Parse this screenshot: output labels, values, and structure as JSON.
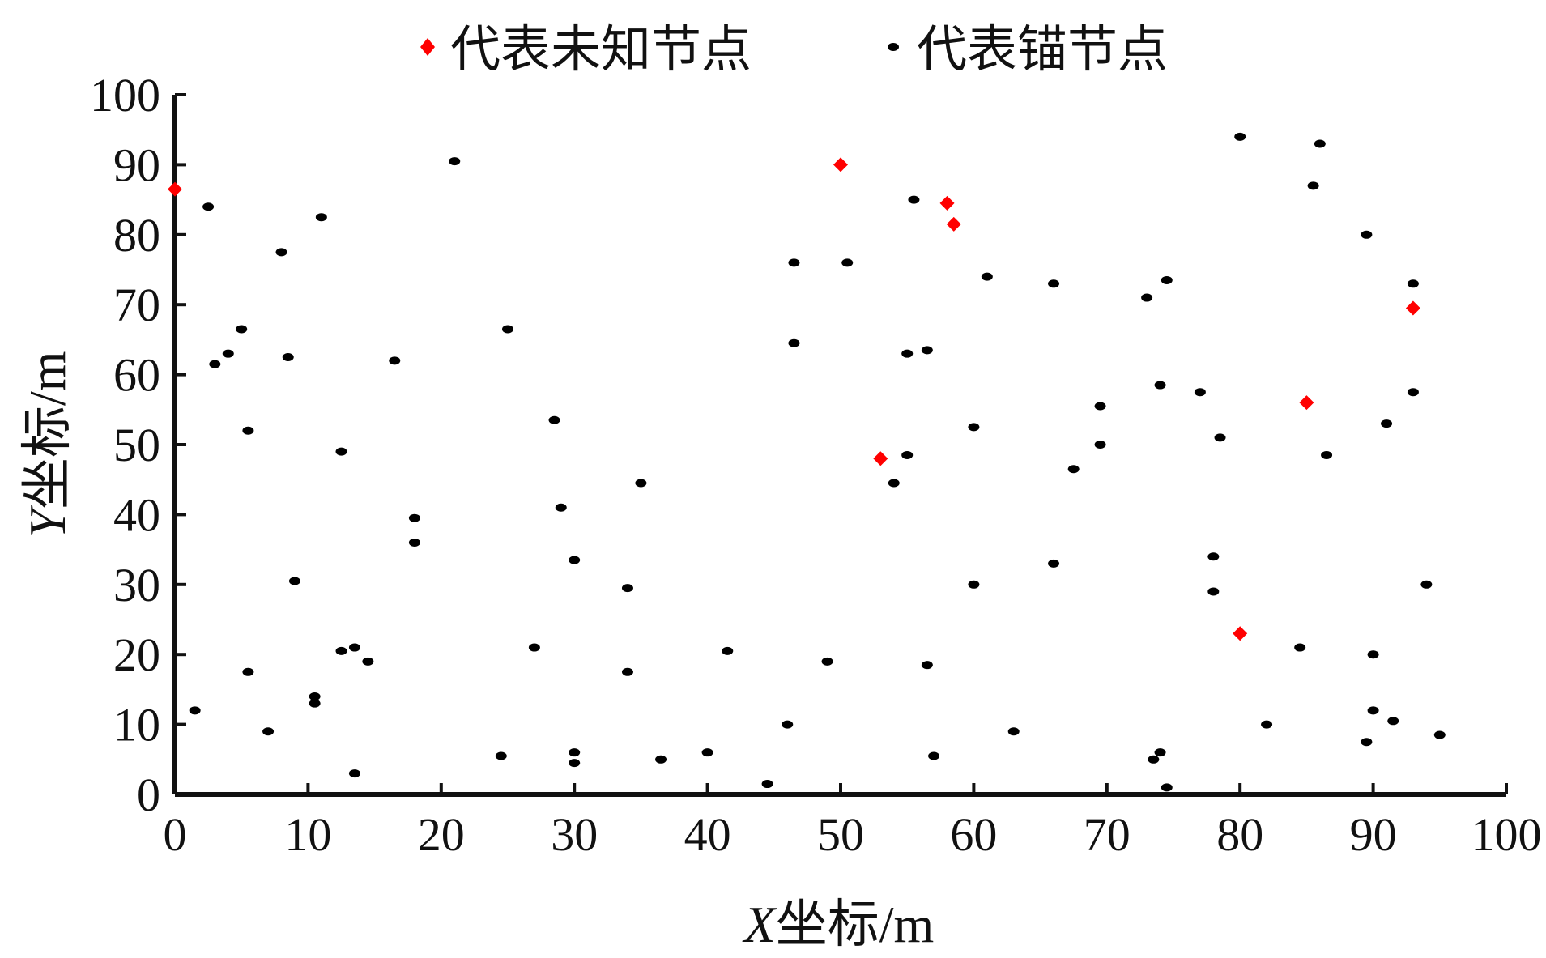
{
  "chart_data": {
    "type": "scatter",
    "xlabel_var": "X",
    "xlabel_suffix": "坐标/m",
    "ylabel_var": "Y",
    "ylabel_suffix": "坐标/m",
    "xlim": [
      0,
      100
    ],
    "ylim": [
      0,
      100
    ],
    "xticks": [
      "0",
      "10",
      "20",
      "30",
      "40",
      "50",
      "60",
      "70",
      "80",
      "90",
      "100"
    ],
    "yticks": [
      "0",
      "10",
      "20",
      "30",
      "40",
      "50",
      "60",
      "70",
      "80",
      "90",
      "100"
    ],
    "grid": false,
    "legend_position": "top",
    "series": [
      {
        "name": "代表未知节点",
        "color": "#ff0000",
        "marker": "diamond",
        "points": [
          [
            0,
            86.5
          ],
          [
            50,
            90
          ],
          [
            58,
            84.5
          ],
          [
            58.5,
            81.5
          ],
          [
            53,
            48
          ],
          [
            93,
            69.5
          ],
          [
            85,
            56
          ],
          [
            80,
            23
          ]
        ]
      },
      {
        "name": "代表锚节点",
        "color": "#000000",
        "marker": "dot",
        "points": [
          [
            2.5,
            84
          ],
          [
            11,
            82.5
          ],
          [
            21,
            90.5
          ],
          [
            8,
            77.5
          ],
          [
            5,
            66.5
          ],
          [
            4,
            63
          ],
          [
            3,
            61.5
          ],
          [
            8.5,
            62.5
          ],
          [
            16.5,
            62
          ],
          [
            25,
            66.5
          ],
          [
            5.5,
            52
          ],
          [
            12.5,
            49
          ],
          [
            18,
            39.5
          ],
          [
            18,
            36
          ],
          [
            28.5,
            53.5
          ],
          [
            29,
            41
          ],
          [
            35,
            44.5
          ],
          [
            9,
            30.5
          ],
          [
            30,
            33.5
          ],
          [
            34,
            29.5
          ],
          [
            12.5,
            20.5
          ],
          [
            13.5,
            21
          ],
          [
            14.5,
            19
          ],
          [
            5.5,
            17.5
          ],
          [
            27,
            21
          ],
          [
            34,
            17.5
          ],
          [
            1.5,
            12
          ],
          [
            10.5,
            14
          ],
          [
            10.5,
            13
          ],
          [
            7,
            9
          ],
          [
            13.5,
            3
          ],
          [
            24.5,
            5.5
          ],
          [
            30,
            6
          ],
          [
            30,
            4.5
          ],
          [
            36.5,
            5
          ],
          [
            40,
            6
          ],
          [
            41.5,
            20.5
          ],
          [
            44.5,
            1.5
          ],
          [
            46,
            10
          ],
          [
            49,
            19
          ],
          [
            46.5,
            76
          ],
          [
            50.5,
            76
          ],
          [
            46.5,
            64.5
          ],
          [
            55.5,
            85
          ],
          [
            61,
            74
          ],
          [
            55,
            63
          ],
          [
            56.5,
            63.5
          ],
          [
            60,
            52.5
          ],
          [
            55,
            48.5
          ],
          [
            54,
            44.5
          ],
          [
            60,
            30
          ],
          [
            56.5,
            18.5
          ],
          [
            57,
            5.5
          ],
          [
            63,
            9
          ],
          [
            66,
            73
          ],
          [
            66,
            33
          ],
          [
            67.5,
            46.5
          ],
          [
            69.5,
            55.5
          ],
          [
            69.5,
            50
          ],
          [
            73,
            71
          ],
          [
            74.5,
            73.5
          ],
          [
            74,
            58.5
          ],
          [
            77,
            57.5
          ],
          [
            78.5,
            51
          ],
          [
            78,
            34
          ],
          [
            78,
            29
          ],
          [
            80,
            94
          ],
          [
            86,
            93
          ],
          [
            85.5,
            87
          ],
          [
            89.5,
            80
          ],
          [
            93,
            73
          ],
          [
            93,
            57.5
          ],
          [
            91,
            53
          ],
          [
            86.5,
            48.5
          ],
          [
            94,
            30
          ],
          [
            84.5,
            21
          ],
          [
            90,
            20
          ],
          [
            82,
            10
          ],
          [
            90,
            12
          ],
          [
            91.5,
            10.5
          ],
          [
            89.5,
            7.5
          ],
          [
            95,
            8.5
          ],
          [
            74,
            6
          ],
          [
            73.5,
            5
          ],
          [
            74.5,
            1
          ]
        ]
      }
    ]
  }
}
